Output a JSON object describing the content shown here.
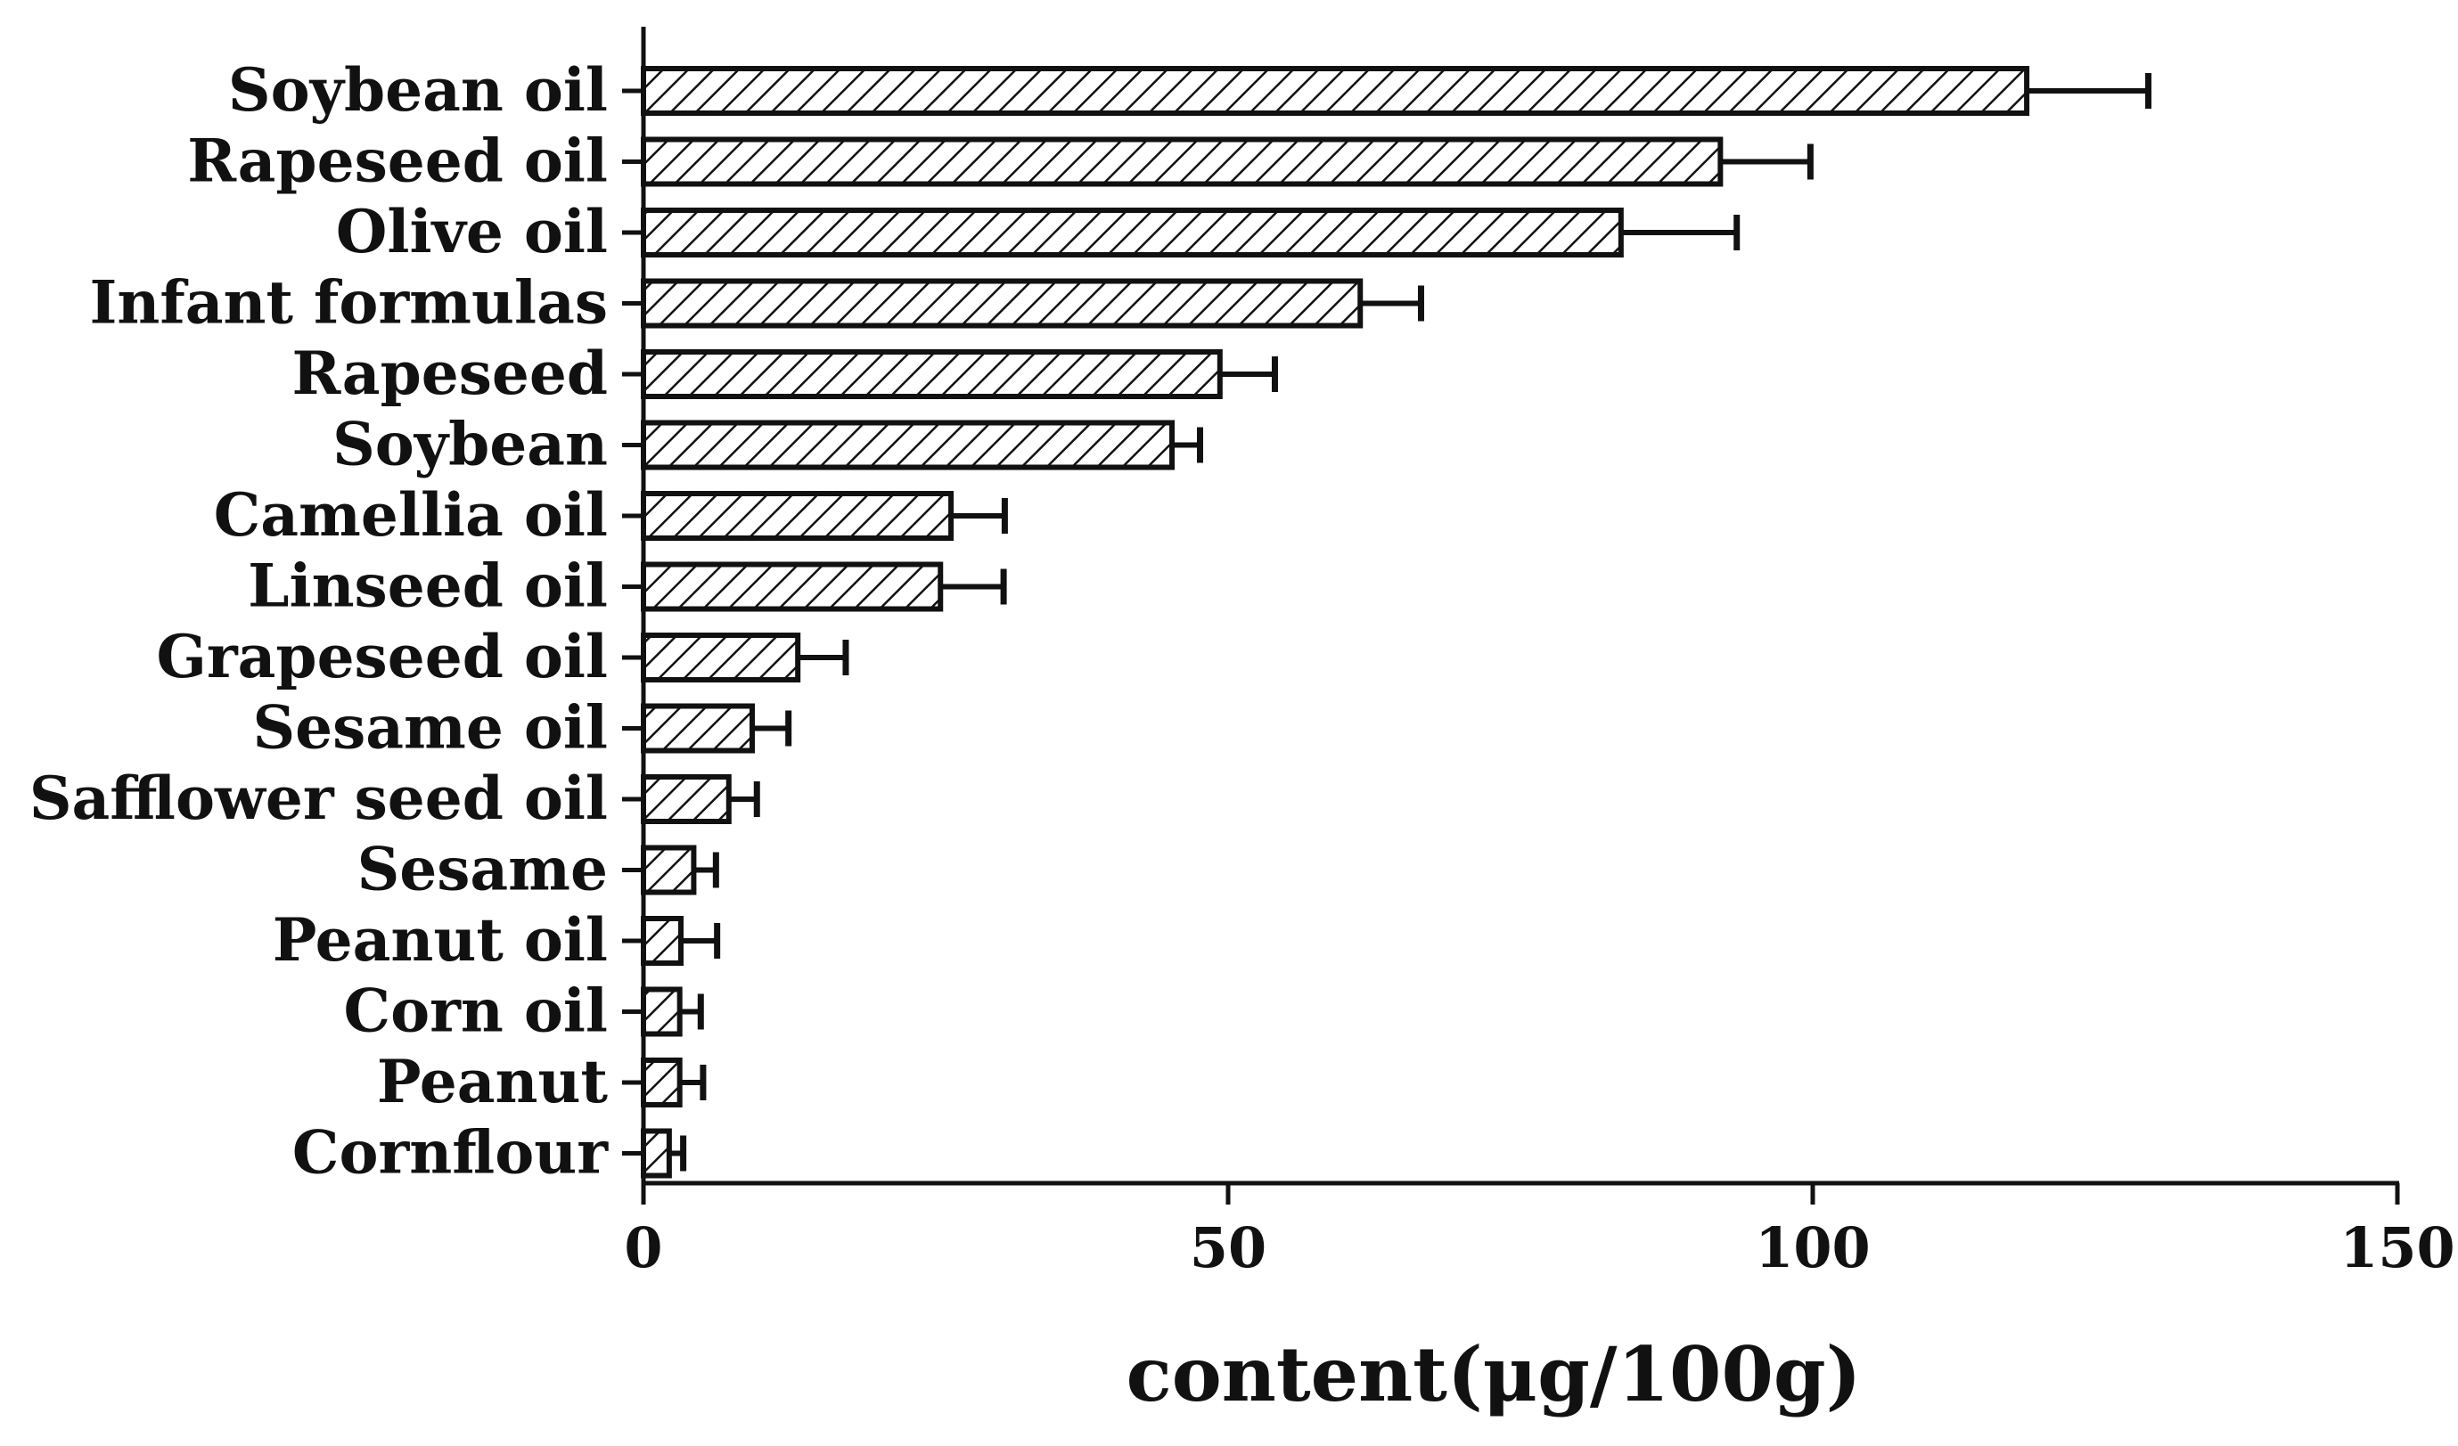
{
  "chart_data": {
    "type": "bar",
    "orientation": "horizontal",
    "categories": [
      "Soybean oil",
      "Rapeseed oil",
      "Olive oil",
      "Infant formulas",
      "Rapeseed",
      "Soybean",
      "Camellia oil",
      "Linseed oil",
      "Grapeseed oil",
      "Sesame oil",
      "Safflower seed oil",
      "Sesame",
      "Peanut oil",
      "Corn oil",
      "Peanut",
      "Cornflour"
    ],
    "values": [
      118.3,
      92.1,
      83.6,
      61.3,
      49.3,
      45.2,
      26.3,
      25.4,
      13.2,
      9.3,
      7.3,
      4.3,
      3.2,
      3.1,
      3.1,
      2.2
    ],
    "error": [
      10.4,
      7.7,
      9.9,
      5.2,
      4.7,
      2.4,
      4.6,
      5.4,
      4.1,
      3.1,
      2.4,
      1.9,
      3.1,
      1.8,
      2.0,
      1.2
    ],
    "xlabel": "content(μg/100g)",
    "ylabel": "",
    "title": "",
    "xlim": [
      0,
      150
    ],
    "xticks": [
      0,
      50,
      100,
      150
    ],
    "bar_fill": "diagonal-hatch",
    "colors": {
      "bar_stroke": "#111111",
      "hatch": "#111111",
      "background": "#ffffff"
    },
    "grid": false,
    "legend": "none"
  }
}
